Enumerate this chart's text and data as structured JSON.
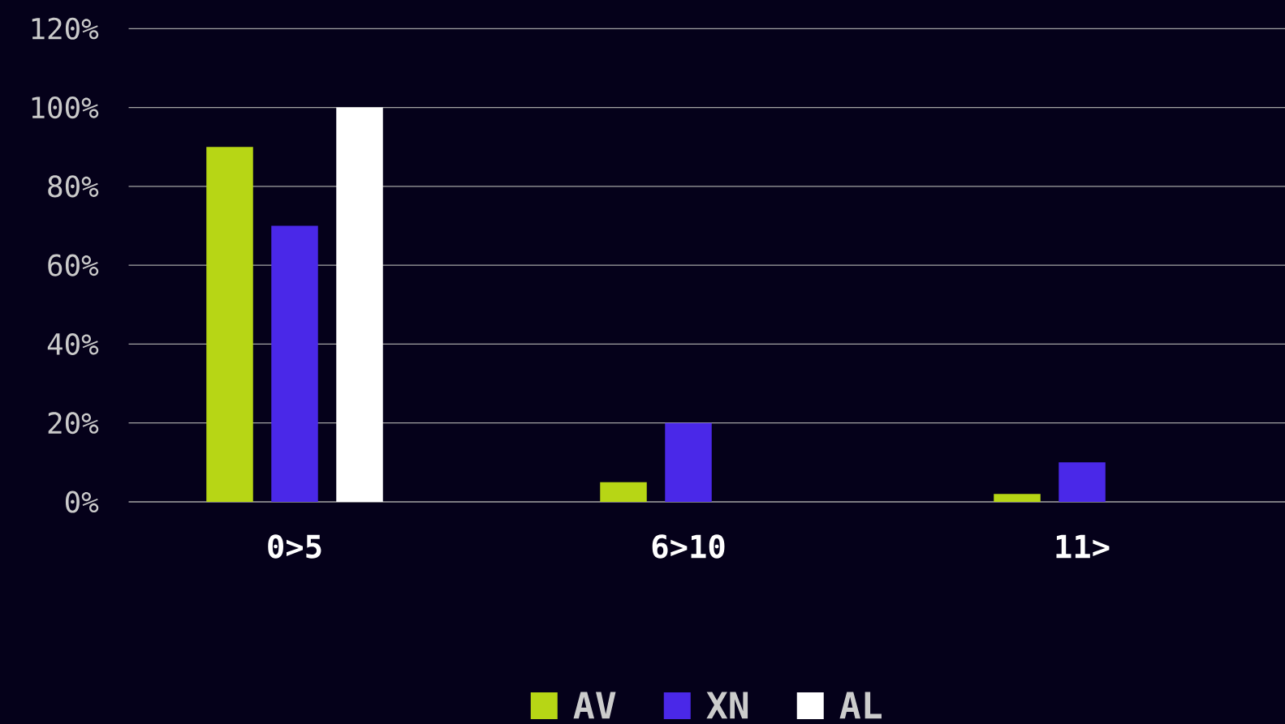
{
  "chart_data": {
    "type": "bar",
    "categories": [
      "0>5",
      "6>10",
      "11>"
    ],
    "series": [
      {
        "name": "AV",
        "color": "#b7d615",
        "values": [
          90,
          5,
          2
        ]
      },
      {
        "name": "XN",
        "color": "#4a28e8",
        "values": [
          70,
          20,
          10
        ]
      },
      {
        "name": "AL",
        "color": "#ffffff",
        "values": [
          100,
          0,
          0
        ]
      }
    ],
    "ylim": [
      0,
      120
    ],
    "yticks": [
      {
        "value": 0,
        "label": "0%"
      },
      {
        "value": 20,
        "label": "20%"
      },
      {
        "value": 40,
        "label": "40%"
      },
      {
        "value": 60,
        "label": "60%"
      },
      {
        "value": 80,
        "label": "80%"
      },
      {
        "value": 100,
        "label": "100%"
      },
      {
        "value": 120,
        "label": "120%"
      }
    ],
    "grid": "y",
    "legend": "bottom"
  }
}
